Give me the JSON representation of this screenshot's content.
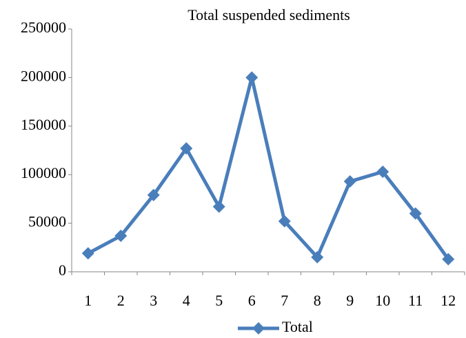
{
  "chart_data": {
    "type": "line",
    "title": "Total suspended sediments",
    "categories": [
      "1",
      "2",
      "3",
      "4",
      "5",
      "6",
      "7",
      "8",
      "9",
      "10",
      "11",
      "12"
    ],
    "series": [
      {
        "name": "Total",
        "color": "#4a7ebb",
        "values": [
          19000,
          37000,
          79000,
          127000,
          67000,
          200000,
          52000,
          15000,
          93000,
          103000,
          60000,
          13000
        ]
      }
    ],
    "ylim": [
      0,
      250000
    ],
    "yticks": [
      0,
      50000,
      100000,
      150000,
      200000,
      250000
    ],
    "grid": false,
    "legend": "bottom"
  }
}
